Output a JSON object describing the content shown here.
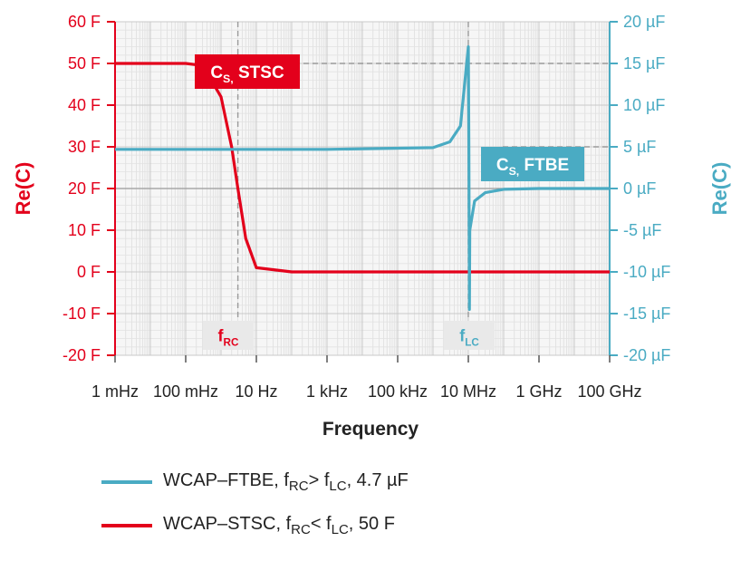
{
  "chart_data": {
    "type": "line",
    "title": "",
    "xlabel": "Frequency",
    "xscale": "log",
    "xlim": [
      "1 mHz",
      "100 GHz"
    ],
    "x_tick_labels": [
      "1 mHz",
      "100 mHz",
      "10 Hz",
      "1 kHz",
      "100 kHz",
      "10 MHz",
      "1 GHz",
      "100 GHz"
    ],
    "left_axis": {
      "label": "Re(C)",
      "color": "#e3001b",
      "ylim": [
        -20,
        60
      ],
      "tick_labels": [
        "-20 F",
        "-10 F",
        "0 F",
        "10 F",
        "20 F",
        "30 F",
        "40 F",
        "50 F",
        "60 F"
      ]
    },
    "right_axis": {
      "label": "Re(C)",
      "color": "#4aabc3",
      "ylim": [
        -20,
        20
      ],
      "tick_labels": [
        "-20 µF",
        "-15 µF",
        "-10 µF",
        "-5 µF",
        "0 µF",
        "5 µF",
        "10 µF",
        "15 µF",
        "20 µF"
      ]
    },
    "grid": true,
    "series": [
      {
        "name": "WCAP–STSC",
        "axis": "left",
        "color": "#e3001b",
        "unit": "F",
        "x": [
          "1 mHz",
          "100 mHz",
          "300 mHz",
          "1 Hz",
          "2 Hz",
          "3 Hz",
          "5 Hz",
          "10 Hz",
          "100 Hz",
          "1 kHz",
          "100 kHz",
          "10 MHz",
          "1 GHz",
          "100 GHz"
        ],
        "values": [
          50,
          50,
          49.5,
          42,
          30,
          20,
          8,
          1,
          0,
          0,
          0,
          0,
          0,
          0
        ]
      },
      {
        "name": "WCAP–FTBE",
        "axis": "right",
        "color": "#4aabc3",
        "unit": "µF",
        "x": [
          "1 mHz",
          "1 kHz",
          "1 MHz",
          "3 MHz",
          "6 MHz",
          "10 MHz",
          "10 MHz",
          "10 MHz",
          "11 MHz",
          "15 MHz",
          "30 MHz",
          "100 MHz",
          "1 GHz",
          "100 GHz"
        ],
        "values": [
          4.7,
          4.7,
          4.9,
          5.6,
          7.5,
          17,
          5,
          -14.5,
          -5,
          -1.5,
          -0.5,
          -0.1,
          0,
          0
        ]
      }
    ],
    "annotations": {
      "cs_stsc": {
        "main": "C",
        "sub": "S,",
        "rest": " STSC"
      },
      "cs_ftbe": {
        "main": "C",
        "sub": "S,",
        "rest": " FTBE"
      },
      "f_rc": {
        "main": "f",
        "sub": "RC",
        "x": "3 Hz"
      },
      "f_lc": {
        "main": "f",
        "sub": "LC",
        "x": "10 MHz"
      }
    }
  },
  "legend": [
    {
      "color": "#4aabc3",
      "t1": "WCAP–FTBE, f",
      "s1": "RC",
      "t2": "> f",
      "s2": "LC",
      "t3": ", 4.7 µF"
    },
    {
      "color": "#e3001b",
      "t1": "WCAP–STSC, f",
      "s1": "RC",
      "t2": "< f",
      "s2": "LC",
      "t3": ", 50 F"
    }
  ]
}
